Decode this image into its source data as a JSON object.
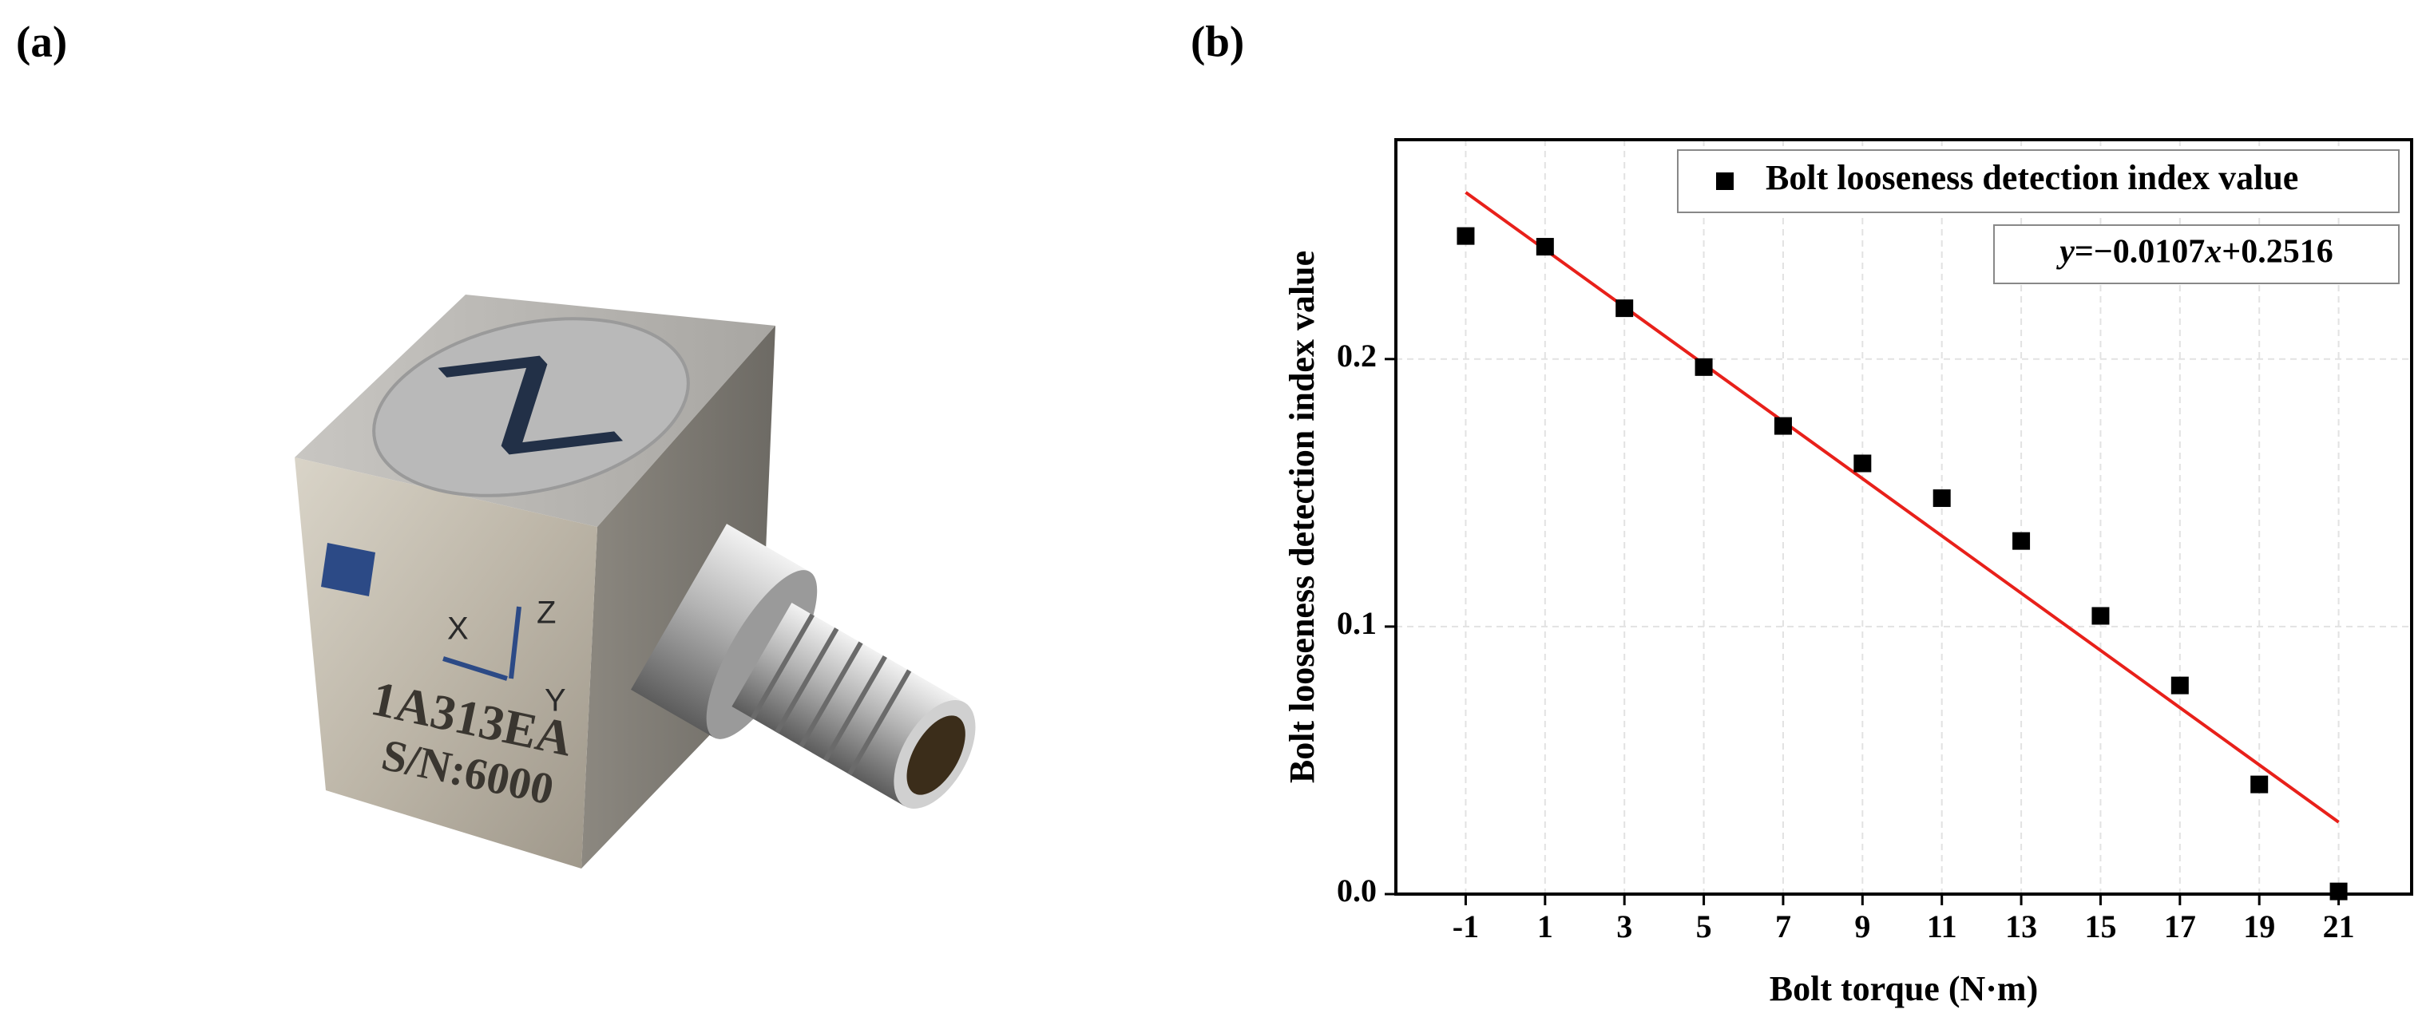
{
  "panels": {
    "a": "(a)",
    "b": "(b)"
  },
  "photo": {
    "top_mark": "Z",
    "model": "1A313EA",
    "serial": "S/N:6000",
    "axis_x": "X",
    "axis_y": "Y",
    "axis_z": "Z"
  },
  "chart_data": {
    "type": "scatter",
    "x_label": "Bolt torque (N·m)",
    "y_label": "Bolt looseness detection index value",
    "x": [
      -1,
      1,
      3,
      5,
      7,
      9,
      11,
      13,
      15,
      17,
      19,
      21
    ],
    "series": [
      {
        "name": "Bolt looseness detection index value",
        "color": "#000000",
        "values": [
          0.246,
          0.242,
          0.219,
          0.197,
          0.175,
          0.161,
          0.148,
          0.132,
          0.104,
          0.078,
          0.041,
          0.001
        ]
      }
    ],
    "fit": {
      "slope": -0.0107,
      "intercept": 0.2516,
      "color": "#e8201a",
      "label_parts": [
        "y",
        "=−0.0107",
        "x",
        "+0.2516"
      ]
    },
    "xlim": [
      -2.76,
      22.84
    ],
    "ylim": [
      0,
      0.282
    ],
    "xticks": [
      -1,
      1,
      3,
      5,
      7,
      9,
      11,
      13,
      15,
      17,
      19,
      21
    ],
    "yticks": [
      {
        "value": 0,
        "label": "0.0"
      },
      0.1,
      0.2
    ],
    "grid": true,
    "legend": "upper right"
  }
}
